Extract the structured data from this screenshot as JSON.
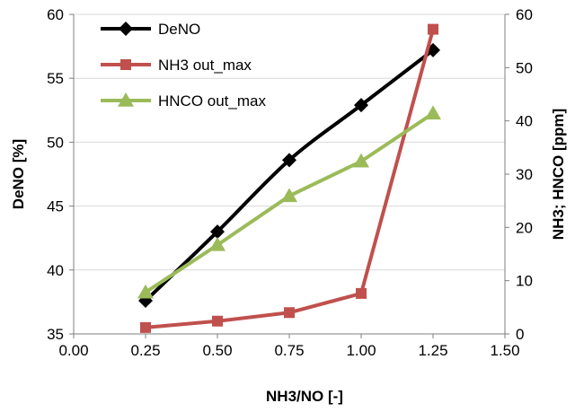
{
  "chart_data": {
    "type": "line",
    "title": "",
    "xlabel": "NH3/NO [-]",
    "ylabel_left": "DeNO [%]",
    "ylabel_right": "NH3; HNCO [ppm]",
    "xlim": [
      0.0,
      1.5
    ],
    "ylim_left": [
      35,
      60
    ],
    "ylim_right": [
      0,
      60
    ],
    "x_ticks": [
      "0.00",
      "0.25",
      "0.50",
      "0.75",
      "1.00",
      "1.25",
      "1.50"
    ],
    "y_ticks_left": [
      "35",
      "40",
      "45",
      "50",
      "55",
      "60"
    ],
    "y_ticks_right": [
      "0",
      "10",
      "20",
      "30",
      "40",
      "50",
      "60"
    ],
    "grid": "horizontal",
    "legend_position": "top-left",
    "x": [
      0.25,
      0.5,
      0.75,
      1.0,
      1.25
    ],
    "series": [
      {
        "name": "DeNO",
        "axis": "left",
        "marker": "diamond",
        "color": "#000000",
        "values": [
          37.6,
          43.0,
          48.6,
          52.9,
          57.2
        ]
      },
      {
        "name": "NH3 out_max",
        "axis": "right",
        "marker": "square",
        "color": "#c0504d",
        "values": [
          1.2,
          2.4,
          4.0,
          7.6,
          57.2
        ]
      },
      {
        "name": "HNCO out_max",
        "axis": "right",
        "marker": "triangle",
        "color": "#9bbb59",
        "values": [
          7.8,
          16.7,
          25.9,
          32.4,
          41.4
        ]
      }
    ]
  }
}
